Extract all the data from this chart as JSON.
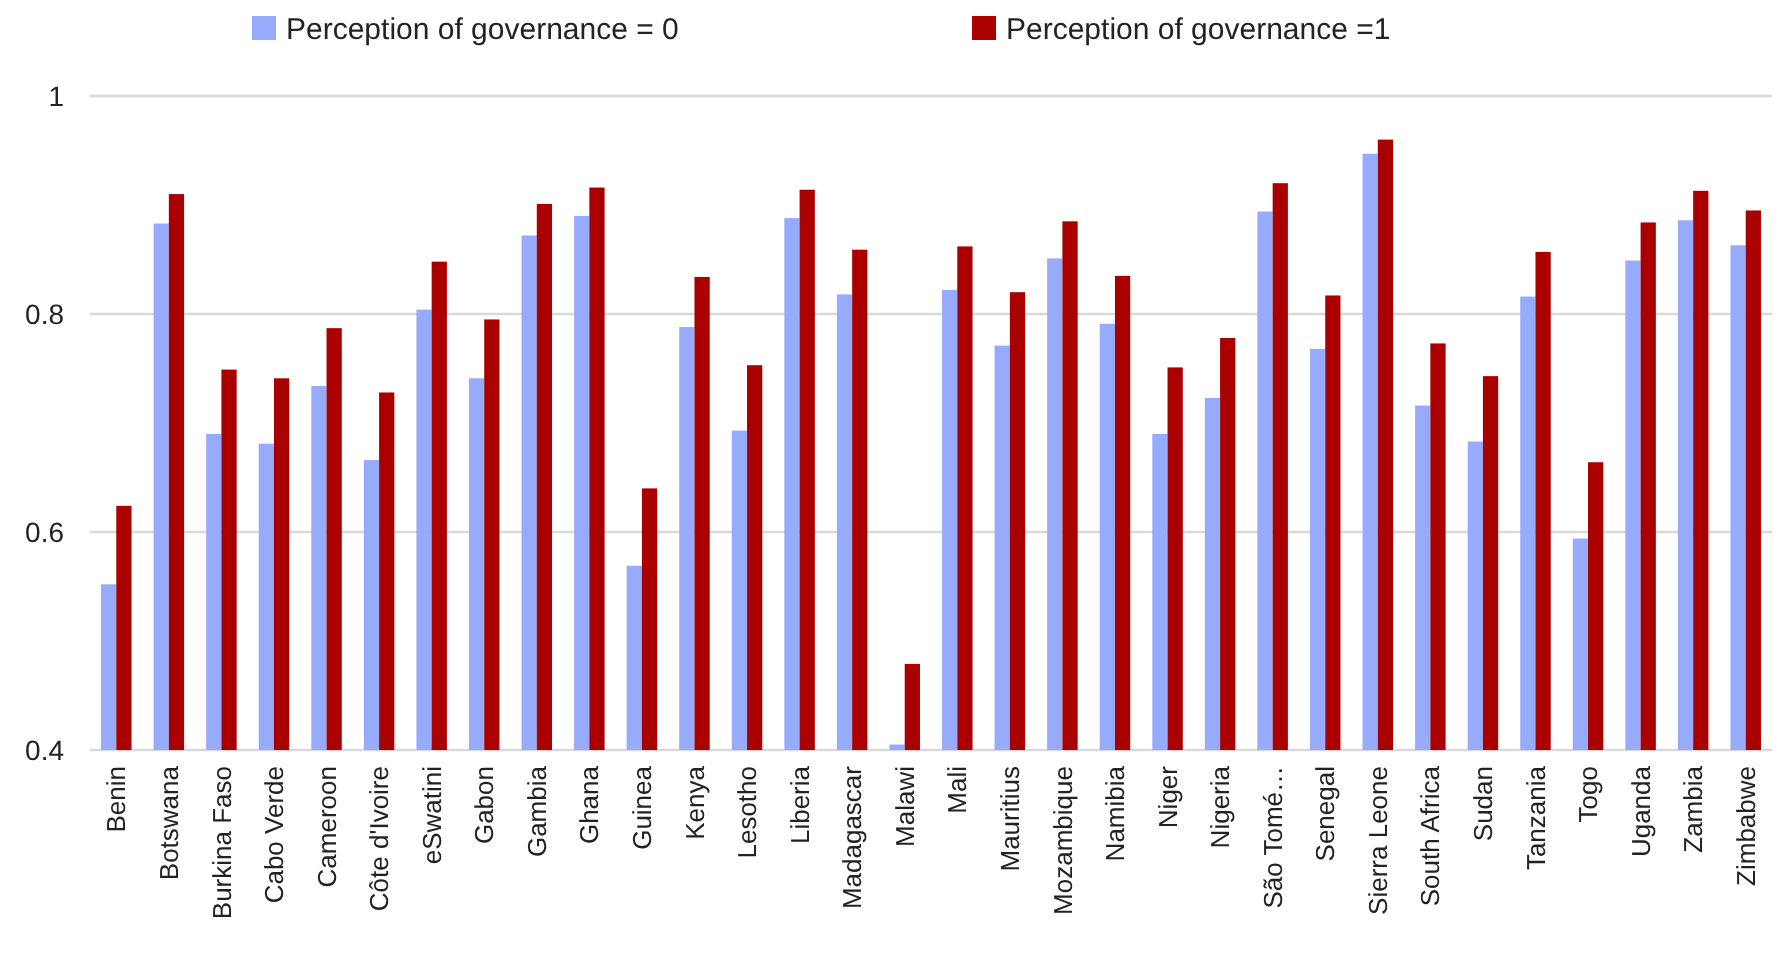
{
  "chart_data": {
    "type": "bar",
    "categories": [
      "Benin",
      "Botswana",
      "Burkina Faso",
      "Cabo Verde",
      "Cameroon",
      "Côte d'Ivoire",
      "eSwatini",
      "Gabon",
      "Gambia",
      "Ghana",
      "Guinea",
      "Kenya",
      "Lesotho",
      "Liberia",
      "Madagascar",
      "Malawi",
      "Mali",
      "Mauritius",
      "Mozambique",
      "Namibia",
      "Niger",
      "Nigeria",
      "São Tomé…",
      "Senegal",
      "Sierra Leone",
      "South Africa",
      "Sudan",
      "Tanzania",
      "Togo",
      "Uganda",
      "Zambia",
      "Zimbabwe"
    ],
    "series": [
      {
        "name": "Perception of governance = 0",
        "color": "#97abfc",
        "values": [
          0.552,
          0.883,
          0.69,
          0.681,
          0.734,
          0.666,
          0.804,
          0.741,
          0.872,
          0.89,
          0.569,
          0.788,
          0.693,
          0.888,
          0.818,
          0.405,
          0.822,
          0.771,
          0.851,
          0.791,
          0.69,
          0.723,
          0.894,
          0.768,
          0.947,
          0.716,
          0.683,
          0.816,
          0.594,
          0.849,
          0.886,
          0.863
        ]
      },
      {
        "name": "Perception of governance =1",
        "color": "#aa0000",
        "values": [
          0.624,
          0.91,
          0.749,
          0.741,
          0.787,
          0.728,
          0.848,
          0.795,
          0.901,
          0.916,
          0.64,
          0.834,
          0.753,
          0.914,
          0.859,
          0.479,
          0.862,
          0.82,
          0.885,
          0.835,
          0.751,
          0.778,
          0.92,
          0.817,
          0.96,
          0.773,
          0.743,
          0.857,
          0.664,
          0.884,
          0.913,
          0.895
        ]
      }
    ],
    "ylim": [
      0.4,
      1
    ],
    "yticks": [
      0.4,
      0.6,
      0.8,
      1
    ],
    "grid": "y",
    "legend": "top"
  }
}
